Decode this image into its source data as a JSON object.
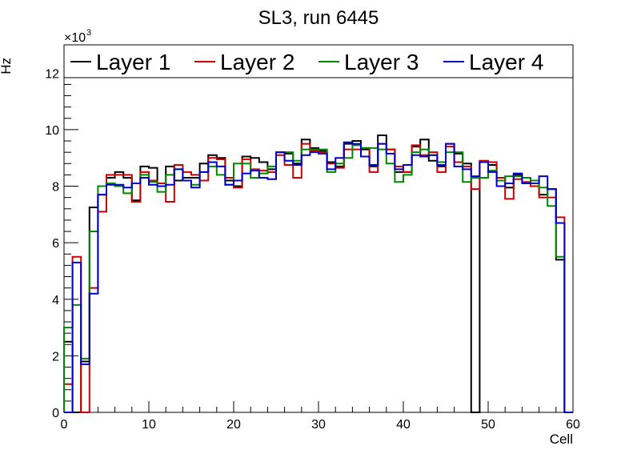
{
  "chart_data": {
    "type": "step",
    "title": "SL3, run 6445",
    "xlabel": "Cell",
    "ylabel": "Hz",
    "y_multiplier_label": "×10",
    "y_multiplier_exp": "3",
    "xlim": [
      0,
      60
    ],
    "ylim": [
      0,
      13000
    ],
    "x_ticks": [
      0,
      10,
      20,
      30,
      40,
      50,
      60
    ],
    "x_tick_labels": [
      "0",
      "10",
      "20",
      "30",
      "40",
      "50",
      "60"
    ],
    "y_ticks": [
      0,
      2000,
      4000,
      6000,
      8000,
      10000,
      12000
    ],
    "y_tick_labels": [
      "0",
      "2",
      "4",
      "6",
      "8",
      "10",
      "12"
    ],
    "bin_edges_start": 0,
    "bin_width": 1,
    "legend_position": "top",
    "series": [
      {
        "name": "Layer 1",
        "color": "#000000",
        "values": [
          2500,
          0,
          1800,
          7250,
          7700,
          8300,
          8500,
          8300,
          7500,
          8700,
          8650,
          8000,
          8700,
          8200,
          8300,
          8300,
          8800,
          9100,
          9000,
          8200,
          8000,
          9050,
          9000,
          8850,
          8600,
          9200,
          9150,
          8800,
          9650,
          9350,
          9250,
          8850,
          8700,
          9500,
          9600,
          9300,
          8700,
          9800,
          9300,
          8500,
          8500,
          9400,
          9650,
          8900,
          8700,
          9500,
          9150,
          8800,
          0,
          8850,
          8750,
          8300,
          7950,
          8400,
          8300,
          8000,
          7700,
          7900,
          5400,
          0
        ]
      },
      {
        "name": "Layer 2",
        "color": "#cc0000",
        "values": [
          1000,
          5500,
          0,
          4400,
          7100,
          8400,
          8400,
          8400,
          7450,
          8500,
          8200,
          8100,
          7450,
          8750,
          8500,
          8400,
          8200,
          9000,
          8950,
          8300,
          7950,
          8950,
          8600,
          8550,
          8500,
          9100,
          8750,
          8300,
          9500,
          9250,
          9200,
          8800,
          8650,
          9300,
          9300,
          9350,
          8500,
          9500,
          9300,
          8700,
          8500,
          9450,
          9100,
          9200,
          8500,
          9400,
          8850,
          8700,
          7900,
          8900,
          8850,
          8300,
          7550,
          8250,
          8150,
          8000,
          7600,
          7600,
          6900,
          0
        ]
      },
      {
        "name": "Layer 3",
        "color": "#008800",
        "values": [
          3000,
          3800,
          1900,
          6400,
          8000,
          8100,
          8000,
          7750,
          8100,
          8400,
          8150,
          7800,
          8400,
          8600,
          8200,
          8050,
          8500,
          8700,
          8400,
          8050,
          8800,
          8800,
          8300,
          8450,
          8700,
          9200,
          9200,
          8900,
          9300,
          9300,
          9300,
          8500,
          8800,
          9000,
          9450,
          9350,
          9350,
          9300,
          8800,
          8150,
          8400,
          9200,
          9300,
          9100,
          8850,
          9200,
          9200,
          8150,
          8300,
          8300,
          8550,
          8200,
          8350,
          8350,
          8300,
          8200,
          7950,
          7300,
          5500,
          0
        ]
      },
      {
        "name": "Layer 4",
        "color": "#0000cc",
        "values": [
          0,
          5300,
          1700,
          4200,
          7700,
          8050,
          8050,
          7950,
          8100,
          8300,
          8050,
          8000,
          8050,
          8600,
          8200,
          7950,
          8500,
          8850,
          8700,
          8050,
          8200,
          8450,
          8550,
          8300,
          8250,
          9200,
          8900,
          8750,
          9100,
          9200,
          9150,
          8600,
          9000,
          9550,
          9500,
          9050,
          8750,
          9500,
          9150,
          8600,
          8750,
          9100,
          9050,
          9100,
          8750,
          9500,
          8700,
          8600,
          8350,
          8850,
          8500,
          8000,
          8100,
          8450,
          8100,
          8100,
          8350,
          7900,
          6700,
          0
        ]
      }
    ]
  }
}
